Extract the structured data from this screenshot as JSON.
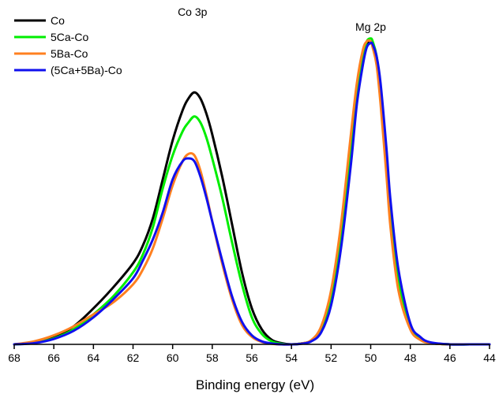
{
  "chart_data": {
    "type": "line",
    "title": "",
    "xlabel": "Binding energy (eV)",
    "ylabel": "",
    "xlim": [
      68,
      44
    ],
    "x_reversed": true,
    "ylim": [
      0,
      1.03
    ],
    "grid": false,
    "legend_position": "top-left",
    "x_ticks": [
      "68",
      "66",
      "64",
      "62",
      "60",
      "58",
      "56",
      "54",
      "52",
      "50",
      "48",
      "46",
      "44"
    ],
    "annotations": [
      {
        "text": "Co 3p",
        "x": 59.0,
        "y": 1.08
      },
      {
        "text": "Mg 2p",
        "x": 50.0,
        "y": 1.03
      }
    ],
    "series": [
      {
        "name": "Co",
        "color": "#000000",
        "x": [
          68,
          67,
          66,
          65,
          64,
          63,
          62,
          61.5,
          61,
          60.5,
          60,
          59.5,
          59.2,
          58.9,
          58.6,
          58.3,
          58,
          57.5,
          57,
          56.5,
          56,
          55.5,
          55,
          54.5,
          54,
          53.5,
          53,
          52.5,
          52,
          51.5,
          51,
          50.7,
          50.4,
          50.2,
          50.0,
          49.9,
          49.7,
          49.5,
          49.2,
          49,
          48.6,
          48,
          47.5,
          47,
          46,
          45,
          44
        ],
        "y": [
          0.0,
          0.006,
          0.025,
          0.06,
          0.12,
          0.19,
          0.27,
          0.33,
          0.42,
          0.55,
          0.68,
          0.78,
          0.82,
          0.84,
          0.82,
          0.77,
          0.7,
          0.56,
          0.4,
          0.24,
          0.12,
          0.05,
          0.015,
          0.004,
          0.0,
          0.003,
          0.012,
          0.05,
          0.16,
          0.37,
          0.65,
          0.83,
          0.95,
          1.0,
          1.01,
          1.0,
          0.95,
          0.85,
          0.62,
          0.45,
          0.22,
          0.06,
          0.02,
          0.005,
          0.0,
          0.0,
          0.0
        ]
      },
      {
        "name": "5Ca-Co",
        "color": "#00ee00",
        "x": [
          68,
          67,
          66,
          65,
          64,
          63,
          62,
          61.5,
          61,
          60.5,
          60,
          59.5,
          59.2,
          58.9,
          58.6,
          58.3,
          58,
          57.5,
          57,
          56.5,
          56,
          55.5,
          55,
          54.5,
          54,
          53.5,
          53,
          52.5,
          52,
          51.5,
          51,
          50.7,
          50.4,
          50.2,
          50.0,
          49.9,
          49.7,
          49.5,
          49.2,
          49,
          48.6,
          48,
          47.5,
          47,
          46,
          45,
          44
        ],
        "y": [
          0.0,
          0.005,
          0.02,
          0.05,
          0.1,
          0.16,
          0.24,
          0.3,
          0.39,
          0.52,
          0.63,
          0.71,
          0.74,
          0.76,
          0.74,
          0.69,
          0.62,
          0.49,
          0.34,
          0.2,
          0.09,
          0.035,
          0.01,
          0.002,
          0.0,
          0.003,
          0.012,
          0.05,
          0.16,
          0.37,
          0.66,
          0.84,
          0.96,
          1.01,
          1.02,
          1.01,
          0.96,
          0.85,
          0.62,
          0.44,
          0.21,
          0.06,
          0.02,
          0.005,
          0.0,
          0.0,
          0.0
        ]
      },
      {
        "name": "5Ba-Co",
        "color": "#ff8020",
        "x": [
          68,
          67,
          66,
          65,
          64,
          63,
          62,
          61.5,
          61,
          60.5,
          60,
          59.5,
          59.2,
          58.9,
          58.6,
          58.3,
          58,
          57.5,
          57,
          56.5,
          56,
          55.5,
          55,
          54.5,
          54,
          53.5,
          53,
          52.5,
          52,
          51.5,
          51,
          50.7,
          50.4,
          50.2,
          50.0,
          49.9,
          49.7,
          49.5,
          49.2,
          49,
          48.6,
          48,
          47.5,
          47,
          46,
          45,
          44
        ],
        "y": [
          0.0,
          0.01,
          0.03,
          0.06,
          0.1,
          0.14,
          0.2,
          0.25,
          0.32,
          0.42,
          0.53,
          0.61,
          0.635,
          0.63,
          0.58,
          0.5,
          0.41,
          0.27,
          0.15,
          0.065,
          0.025,
          0.008,
          0.002,
          0.0,
          0.0,
          0.003,
          0.014,
          0.06,
          0.18,
          0.4,
          0.7,
          0.87,
          0.98,
          1.01,
          1.01,
          0.99,
          0.93,
          0.8,
          0.56,
          0.39,
          0.18,
          0.05,
          0.015,
          0.004,
          0.0,
          0.0,
          0.0
        ]
      },
      {
        "name": "(5Ca+5Ba)-Co",
        "color": "#1010ee",
        "x": [
          68,
          67,
          66,
          65,
          64,
          63,
          62,
          61.5,
          61,
          60.5,
          60,
          59.5,
          59.2,
          58.9,
          58.6,
          58.3,
          58,
          57.5,
          57,
          56.5,
          56,
          55.5,
          55,
          54.5,
          54,
          53.5,
          53,
          52.5,
          52,
          51.5,
          51,
          50.7,
          50.4,
          50.2,
          50.0,
          49.9,
          49.7,
          49.5,
          49.2,
          49,
          48.6,
          48,
          47.5,
          47,
          46,
          45,
          44
        ],
        "y": [
          0.0,
          0.004,
          0.018,
          0.045,
          0.09,
          0.15,
          0.22,
          0.28,
          0.35,
          0.44,
          0.55,
          0.61,
          0.62,
          0.61,
          0.56,
          0.49,
          0.41,
          0.28,
          0.16,
          0.075,
          0.03,
          0.01,
          0.003,
          0.0,
          0.0,
          0.002,
          0.01,
          0.04,
          0.13,
          0.32,
          0.6,
          0.8,
          0.93,
          0.99,
          1.005,
          1.0,
          0.96,
          0.87,
          0.65,
          0.48,
          0.25,
          0.07,
          0.025,
          0.007,
          0.0,
          0.0,
          0.0
        ]
      }
    ]
  }
}
